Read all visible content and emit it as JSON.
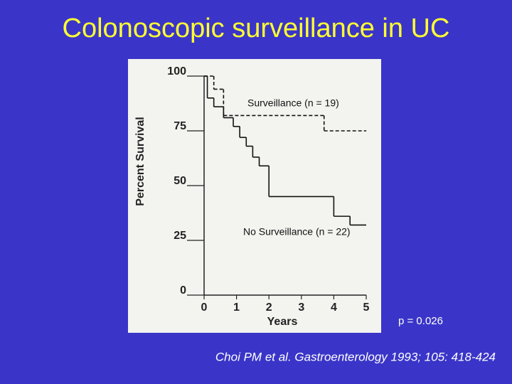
{
  "slide": {
    "title": "Colonoscopic surveillance in UC",
    "note": "p = 0.026",
    "citation": "Choi PM et al. Gastroenterology 1993; 105: 418-424"
  },
  "chart_data": {
    "type": "line",
    "step": true,
    "y_label": "Percent Survival",
    "x_label": "Years",
    "xlim": [
      0,
      5
    ],
    "ylim": [
      0,
      100
    ],
    "xticks": [
      0,
      1,
      2,
      3,
      4,
      5
    ],
    "yticks": [
      0,
      25,
      50,
      75,
      100
    ],
    "grid": false,
    "series": [
      {
        "name": "Surveillance (n = 19)",
        "color": "#111111",
        "dashed": true,
        "x": [
          0,
          0.3,
          0.6,
          3.7,
          5
        ],
        "values": [
          100,
          94,
          82,
          75,
          75
        ]
      },
      {
        "name": "No Surveillance (n = 22)",
        "color": "#111111",
        "dashed": false,
        "x": [
          0,
          0.1,
          0.3,
          0.6,
          0.9,
          1.1,
          1.3,
          1.5,
          1.7,
          2.0,
          4.0,
          4.5,
          5
        ],
        "values": [
          100,
          90,
          86,
          81,
          77,
          72,
          68,
          63,
          59,
          45,
          36,
          32,
          32
        ]
      }
    ]
  }
}
